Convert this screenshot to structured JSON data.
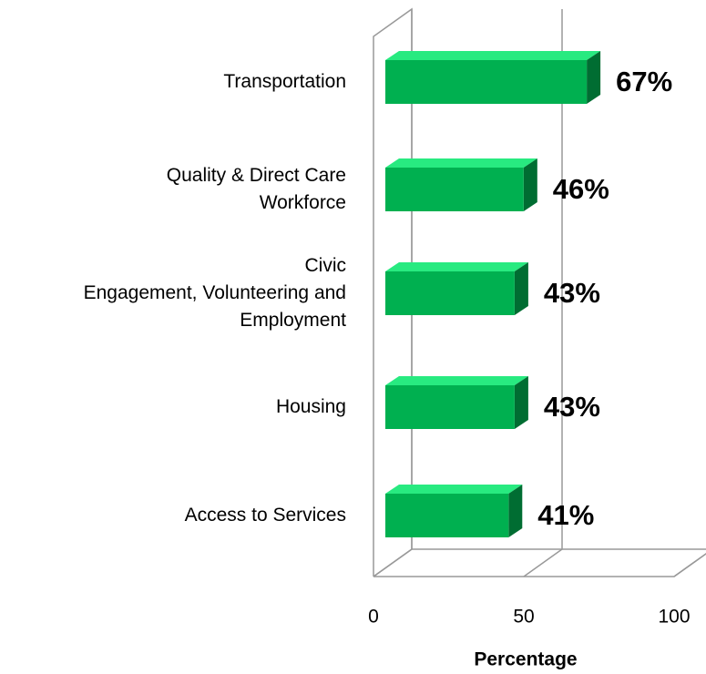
{
  "chart_data": {
    "type": "bar3d_horizontal",
    "categories": [
      "Transportation",
      "Quality & Direct Care\nWorkforce",
      "Civic\nEngagement, Volunteering and\nEmployment",
      "Housing",
      "Access to Services"
    ],
    "values": [
      67,
      46,
      43,
      43,
      41
    ],
    "value_labels": [
      "67%",
      "46%",
      "43%",
      "43%",
      "41%"
    ],
    "color": "#00b050",
    "xlim": [
      0,
      100
    ],
    "xticks": [
      0,
      50,
      100
    ],
    "xlabel": "Percentage",
    "grid": true
  }
}
